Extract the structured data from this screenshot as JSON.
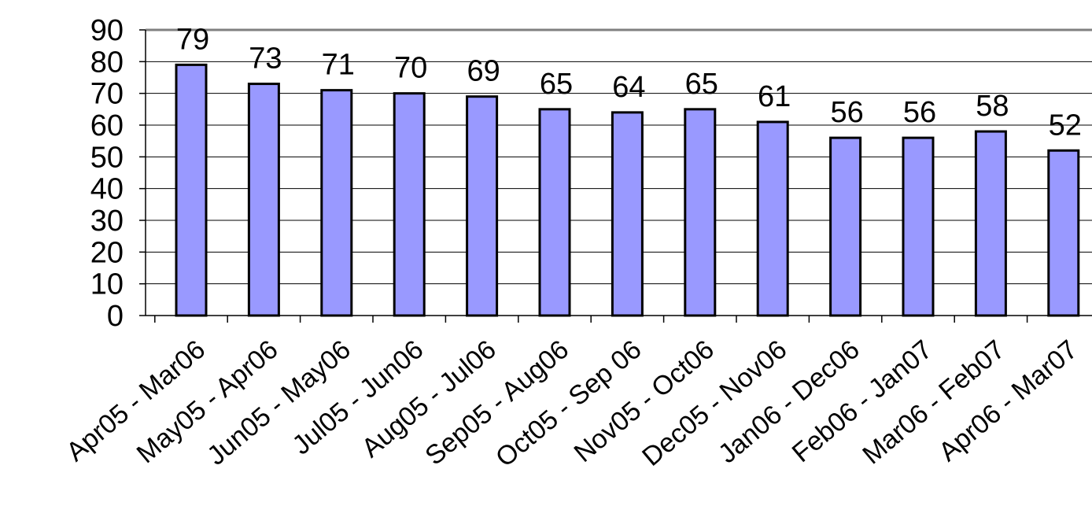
{
  "chart_data": {
    "type": "bar",
    "categories": [
      "Apr05 - Mar06",
      "May05 - Apr06",
      "Jun05 - May06",
      "Jul05 - Jun06",
      "Aug05 - Jul06",
      "Sep05 - Aug06",
      "Oct05 - Sep 06",
      "Nov05 - Oct06",
      "Dec05 - Nov06",
      "Jan06 - Dec06",
      "Feb06 - Jan07",
      "Mar06 - Feb07",
      "Apr06 - Mar07"
    ],
    "values": [
      79,
      73,
      71,
      70,
      69,
      65,
      64,
      65,
      61,
      56,
      56,
      58,
      52
    ],
    "data_labels": [
      "79",
      "73",
      "71",
      "70",
      "69",
      "65",
      "64",
      "65",
      "61",
      "56",
      "56",
      "58",
      "52"
    ],
    "ylim": [
      0,
      90
    ],
    "yticks": [
      0,
      10,
      20,
      30,
      40,
      50,
      60,
      70,
      80,
      90
    ],
    "grid": true,
    "legend": "none",
    "colors": {
      "bar_fill": "#9999ff",
      "bar_stroke": "#000000",
      "grid": "#000000",
      "background": "#ffffff"
    }
  }
}
